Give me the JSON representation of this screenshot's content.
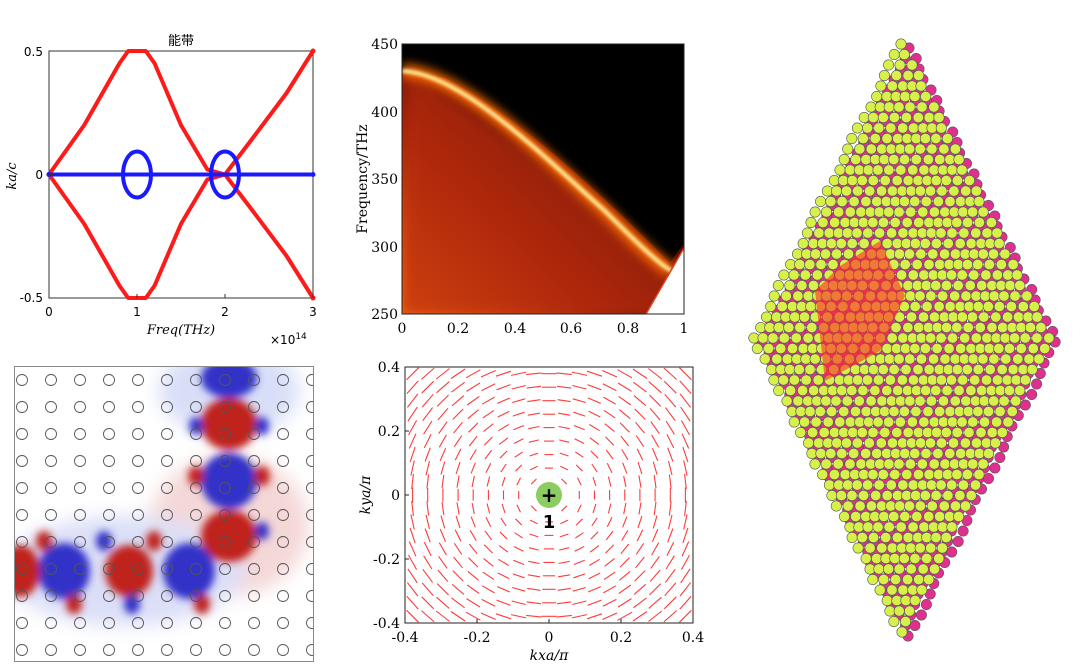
{
  "band_diagram": {
    "title": "能带",
    "xlabel": "Freq(THz)",
    "ylabel": "ka/c",
    "x_ticks": [
      "0",
      "1",
      "2",
      "3"
    ],
    "y_ticks": [
      "0.5",
      "0",
      "-0.5"
    ],
    "exponent": "×10",
    "exponent_power": "14",
    "colors": {
      "red_band": "#ff1a1a",
      "blue_band": "#1a1aff"
    }
  },
  "heatmap": {
    "ylabel": "Frequency/THz",
    "x_ticks": [
      "0",
      "0.2",
      "0.4",
      "0.6",
      "0.8",
      "1"
    ],
    "y_ticks": [
      "450",
      "400",
      "350",
      "300",
      "250"
    ]
  },
  "field_map": {
    "colors": {
      "positive": "#c0201e",
      "negative": "#3030c8"
    }
  },
  "polarization": {
    "xlabel": "kxa/π",
    "ylabel": "kya/π",
    "x_ticks": [
      "-0.4",
      "-0.2",
      "0",
      "0.2",
      "0.4"
    ],
    "y_ticks": [
      "0.4",
      "0.2",
      "0",
      "-0.2",
      "-0.4"
    ],
    "charge_symbol": "+",
    "charge_value": "1",
    "colors": {
      "lines": "#ff3b3b",
      "vortex": "#7ec850"
    }
  },
  "lattice": {
    "colors": {
      "magenta": "#e0308f",
      "yellow": "#d8f04a",
      "cell": "#ff2a2a"
    }
  },
  "chart_data": [
    {
      "type": "line",
      "title": "能带",
      "xlabel": "Freq(THz)",
      "ylabel": "ka/c",
      "xlim": [
        0,
        3
      ],
      "ylim": [
        -0.5,
        0.5
      ],
      "x_scale_note": "×10^14",
      "series": [
        {
          "name": "red band (upper)",
          "x": [
            0,
            0.4,
            0.8,
            0.9,
            1.1,
            1.2,
            1.5,
            1.8,
            2.0,
            2.3,
            2.7,
            3.0
          ],
          "y": [
            0,
            0.2,
            0.45,
            0.5,
            0.5,
            0.45,
            0.2,
            0.02,
            0,
            0.14,
            0.33,
            0.5
          ]
        },
        {
          "name": "red band (lower)",
          "x": [
            0,
            0.4,
            0.8,
            0.9,
            1.1,
            1.2,
            1.5,
            1.8,
            2.0,
            2.3,
            2.7,
            3.0
          ],
          "y": [
            0,
            -0.2,
            -0.45,
            -0.5,
            -0.5,
            -0.45,
            -0.2,
            -0.02,
            0,
            -0.14,
            -0.33,
            -0.5
          ]
        },
        {
          "name": "blue band",
          "x": [
            0,
            3
          ],
          "y": [
            0,
            0
          ]
        }
      ]
    },
    {
      "type": "heatmap",
      "ylabel": "Frequency/THz",
      "xlim": [
        0,
        1
      ],
      "ylim": [
        250,
        450
      ],
      "ridge": {
        "x": [
          0,
          0.1,
          0.3,
          0.5,
          0.7,
          0.9,
          0.95
        ],
        "y": [
          432,
          428,
          398,
          362,
          323,
          290,
          283
        ]
      }
    },
    {
      "type": "scatter",
      "xlabel": "kxa/π",
      "ylabel": "kya/π",
      "xlim": [
        -0.4,
        0.4
      ],
      "ylim": [
        -0.4,
        0.4
      ],
      "vortex": {
        "x": 0,
        "y": 0,
        "charge": 1
      }
    }
  ]
}
